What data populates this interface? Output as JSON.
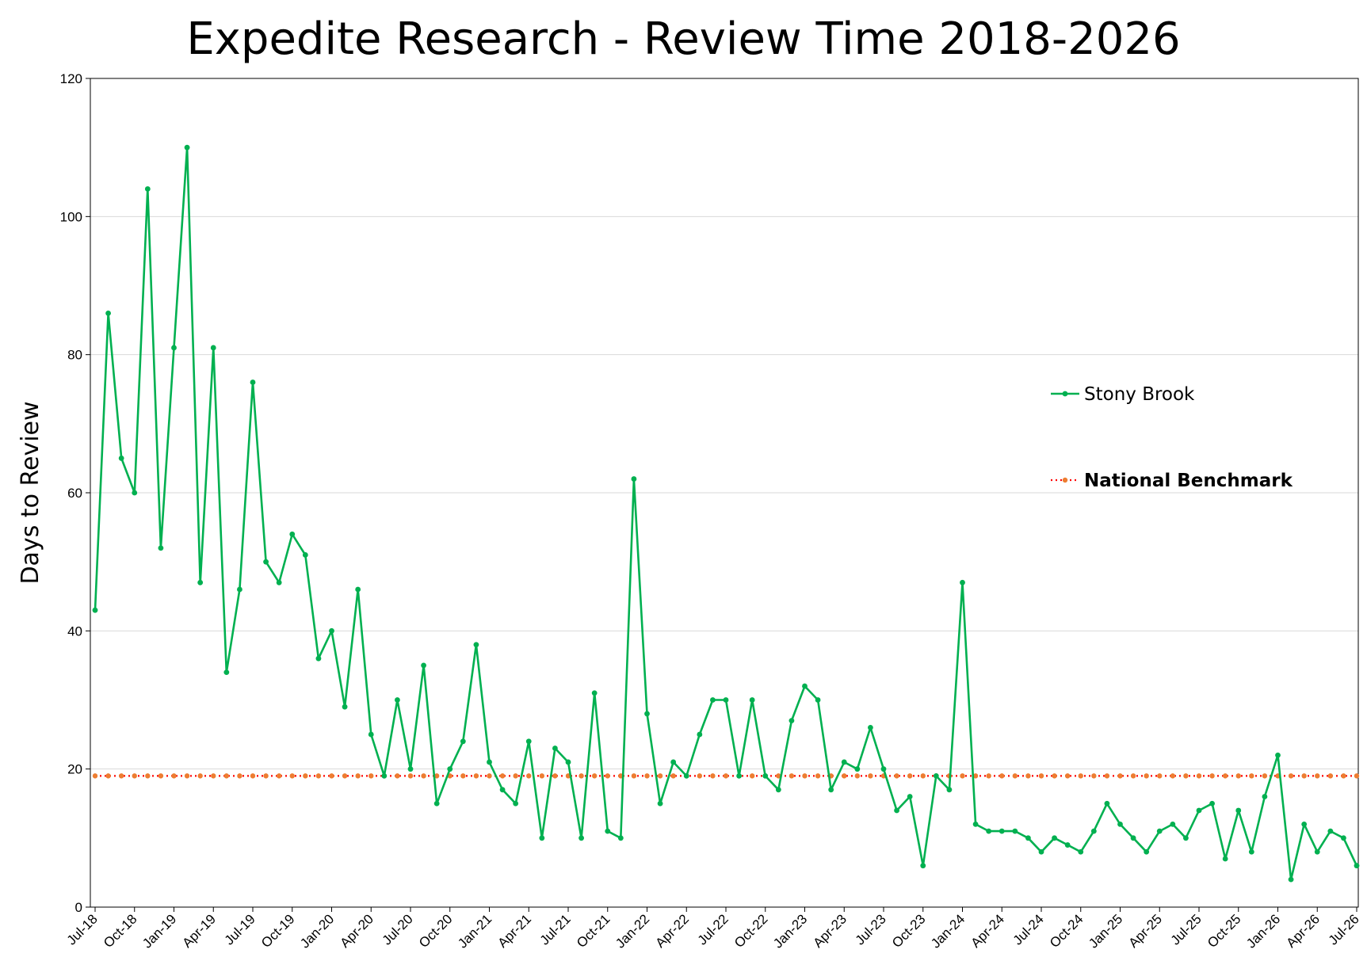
{
  "chart_data": {
    "type": "line",
    "title": "Expedite Research - Review Time 2018-2026",
    "xlabel": "",
    "ylabel": "Days to Review",
    "ylim": [
      0,
      120
    ],
    "yticks": [
      0,
      20,
      40,
      60,
      80,
      100,
      120
    ],
    "grid": true,
    "legend_position": "right",
    "x_start": "Jul-18",
    "x_ticks": [
      "Jul-18",
      "Oct-18",
      "Jan-19",
      "Apr-19",
      "Jul-19",
      "Oct-19",
      "Jan-20",
      "Apr-20",
      "Jul-20",
      "Oct-20",
      "Jan-21",
      "Apr-21",
      "Jul-21",
      "Oct-21",
      "Jan-22",
      "Apr-22",
      "Jul-22",
      "Oct-22",
      "Jan-23",
      "Apr-23",
      "Jul-23",
      "Oct-23",
      "Jan-24",
      "Apr-24",
      "Jul-24",
      "Oct-24",
      "Jan-25",
      "Apr-25",
      "Jul-25",
      "Oct-25",
      "Jan-26",
      "Apr-26",
      "Jul-26"
    ],
    "series": [
      {
        "name": "Stony Brook",
        "color": "#00b050",
        "style": "solid-markers",
        "values": [
          43,
          86,
          65,
          60,
          104,
          52,
          81,
          110,
          47,
          81,
          34,
          46,
          76,
          50,
          47,
          54,
          51,
          36,
          40,
          29,
          46,
          25,
          19,
          30,
          20,
          35,
          15,
          20,
          24,
          38,
          21,
          17,
          15,
          24,
          10,
          23,
          21,
          10,
          31,
          11,
          10,
          62,
          28,
          15,
          21,
          19,
          25,
          30,
          30,
          19,
          30,
          19,
          17,
          27,
          32,
          30,
          17,
          21,
          20,
          26,
          20,
          14,
          16,
          6,
          19,
          17,
          47,
          12,
          11,
          11,
          11,
          10,
          8,
          10,
          9,
          8,
          11,
          15,
          12,
          10,
          8,
          11,
          12,
          10,
          14,
          15,
          7,
          14,
          8,
          16,
          22,
          4,
          12,
          8,
          11,
          10,
          6
        ]
      },
      {
        "name": "National Benchmark",
        "color": "#ff0000",
        "marker_color": "#ed7d31",
        "style": "dotted-markers",
        "values": [
          19,
          19,
          19,
          19,
          19,
          19,
          19,
          19,
          19,
          19,
          19,
          19,
          19,
          19,
          19,
          19,
          19,
          19,
          19,
          19,
          19,
          19,
          19,
          19,
          19,
          19,
          19,
          19,
          19,
          19,
          19,
          19,
          19,
          19,
          19,
          19,
          19,
          19,
          19,
          19,
          19,
          19,
          19,
          19,
          19,
          19,
          19,
          19,
          19,
          19,
          19,
          19,
          19,
          19,
          19,
          19,
          19,
          19,
          19,
          19,
          19,
          19,
          19,
          19,
          19,
          19,
          19,
          19,
          19,
          19,
          19,
          19,
          19,
          19,
          19,
          19,
          19,
          19,
          19,
          19,
          19,
          19,
          19,
          19,
          19,
          19,
          19,
          19,
          19,
          19,
          19,
          19,
          19,
          19,
          19,
          19,
          19
        ]
      }
    ]
  }
}
